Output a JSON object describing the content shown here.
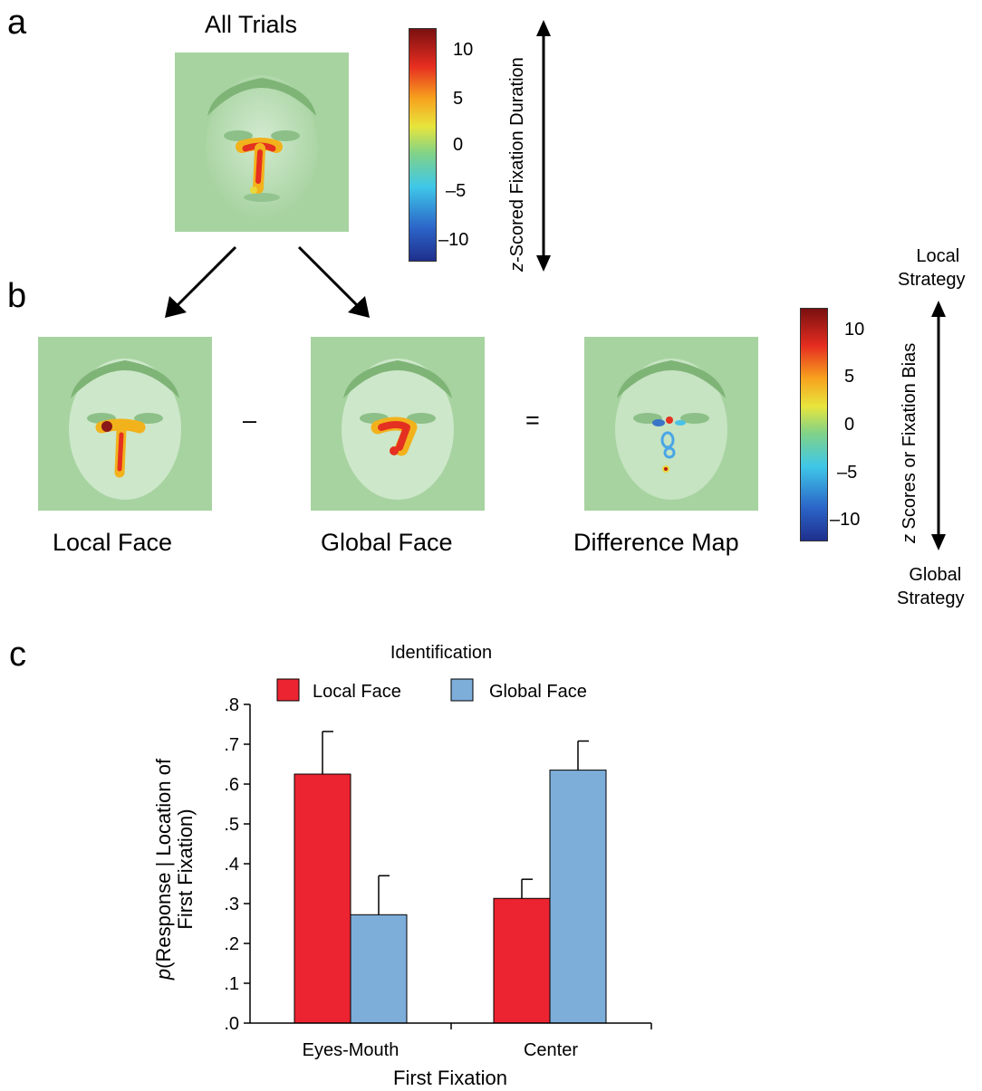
{
  "panels": {
    "a": {
      "letter": "a",
      "title": "All Trials",
      "colorbar_ticks": [
        "10",
        "5",
        "0",
        "–5",
        "–10"
      ],
      "axis_label_italic": "z",
      "axis_label_rest": "-Scored Fixation Duration"
    },
    "b": {
      "letter": "b",
      "minus_sign": "–",
      "equals_sign": "=",
      "face_labels": [
        "Local Face",
        "Global Face",
        "Difference Map"
      ],
      "colorbar_ticks": [
        "10",
        "5",
        "0",
        "–5",
        "–10"
      ],
      "axis_label_italic": "z",
      "axis_label_rest": " Scores or Fixation Bias",
      "top_label": [
        "Local",
        "Strategy"
      ],
      "bottom_label": [
        "Global",
        "Strategy"
      ]
    },
    "c": {
      "letter": "c"
    }
  },
  "colors": {
    "local": "#ec2330",
    "global": "#7dadd9",
    "face_bg": "#a7d3a0"
  },
  "chart_data": {
    "type": "bar",
    "legend_title": "Identification",
    "categories": [
      "Eyes-Mouth",
      "Center"
    ],
    "series": [
      {
        "name": "Local Face",
        "values": [
          0.625,
          0.313
        ],
        "errors": [
          0.107,
          0.048
        ]
      },
      {
        "name": "Global Face",
        "values": [
          0.272,
          0.635
        ],
        "errors": [
          0.098,
          0.073
        ]
      }
    ],
    "xlabel": "First Fixation",
    "ylabel_italic": "p",
    "ylabel_line1": "(Response | Location of",
    "ylabel_line2": "First Fixation)",
    "ylim": [
      0,
      0.8
    ],
    "yticks": [
      0,
      0.1,
      0.2,
      0.3,
      0.4,
      0.5,
      0.6,
      0.7,
      0.8
    ],
    "ytick_labels": [
      ".0",
      ".1",
      ".2",
      ".3",
      ".4",
      ".5",
      ".6",
      ".7",
      ".8"
    ],
    "legend_position": "top"
  }
}
